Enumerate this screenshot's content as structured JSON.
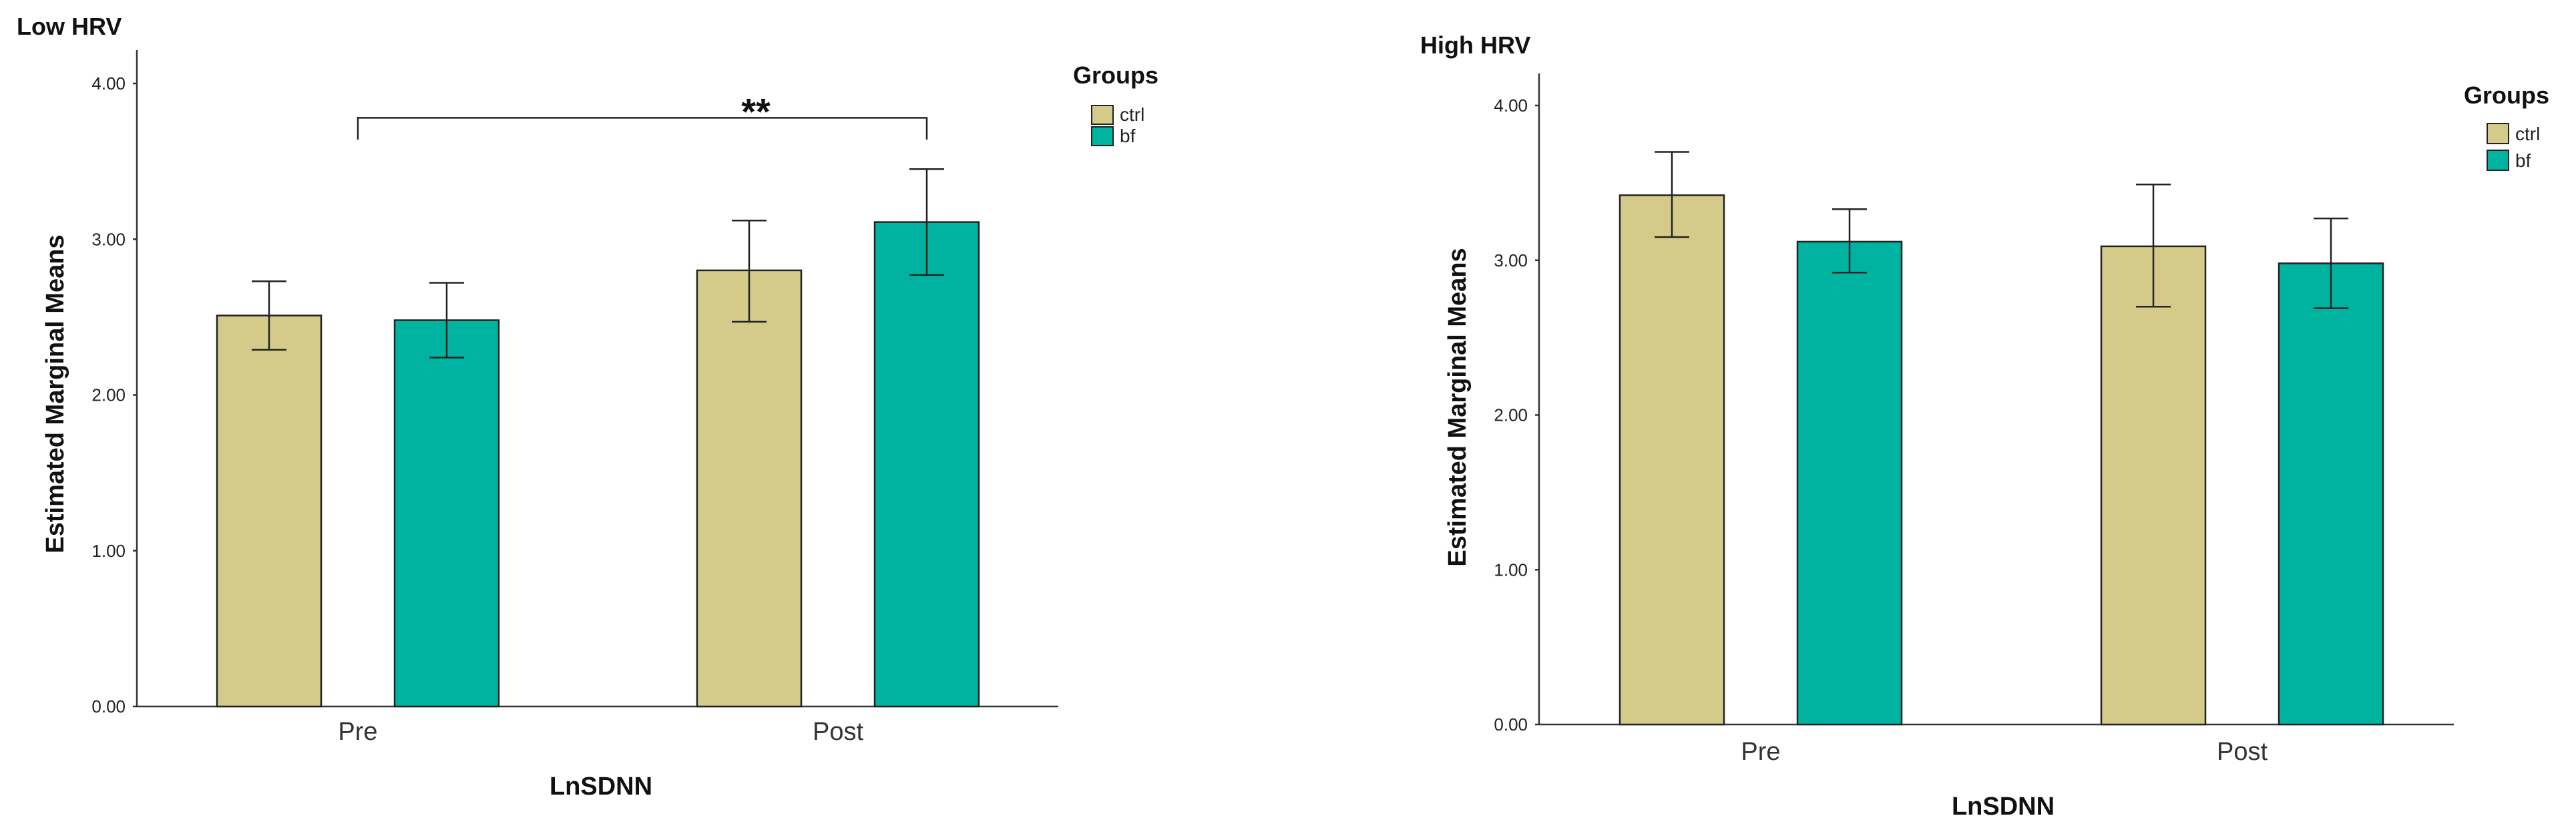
{
  "chart_data": [
    {
      "type": "bar",
      "title": "Low HRV",
      "xlabel": "LnSDNN",
      "ylabel": "Estimated Marginal Means",
      "ylim": [
        0,
        4
      ],
      "yticks": [
        "0.00",
        "1.00",
        "2.00",
        "3.00",
        "4.00"
      ],
      "categories": [
        "Pre",
        "Post"
      ],
      "legend_title": "Groups",
      "legend_position": "top-right",
      "series": [
        {
          "name": "ctrl",
          "color": "#D4CB8B",
          "values": [
            2.51,
            2.8
          ],
          "error_low": [
            2.29,
            2.47
          ],
          "error_high": [
            2.73,
            3.12
          ]
        },
        {
          "name": "bf",
          "color": "#00B2A0",
          "values": [
            2.48,
            3.11
          ],
          "error_low": [
            2.24,
            2.77
          ],
          "error_high": [
            2.72,
            3.45
          ]
        }
      ],
      "annotation": {
        "text": "**",
        "from": "ctrl-Pre/bf-Pre midpoint",
        "to": "bf-Post"
      }
    },
    {
      "type": "bar",
      "title": "High HRV",
      "xlabel": "LnSDNN",
      "ylabel": "Estimated Marginal Means",
      "ylim": [
        0,
        4
      ],
      "yticks": [
        "0.00",
        "1.00",
        "2.00",
        "3.00",
        "4.00"
      ],
      "categories": [
        "Pre",
        "Post"
      ],
      "legend_title": "Groups",
      "legend_position": "top-right",
      "series": [
        {
          "name": "ctrl",
          "color": "#D4CB8B",
          "values": [
            3.42,
            3.09
          ],
          "error_low": [
            3.15,
            2.7
          ],
          "error_high": [
            3.7,
            3.49
          ]
        },
        {
          "name": "bf",
          "color": "#00B2A0",
          "values": [
            3.12,
            2.98
          ],
          "error_low": [
            2.92,
            2.69
          ],
          "error_high": [
            3.33,
            3.27
          ]
        }
      ]
    }
  ]
}
